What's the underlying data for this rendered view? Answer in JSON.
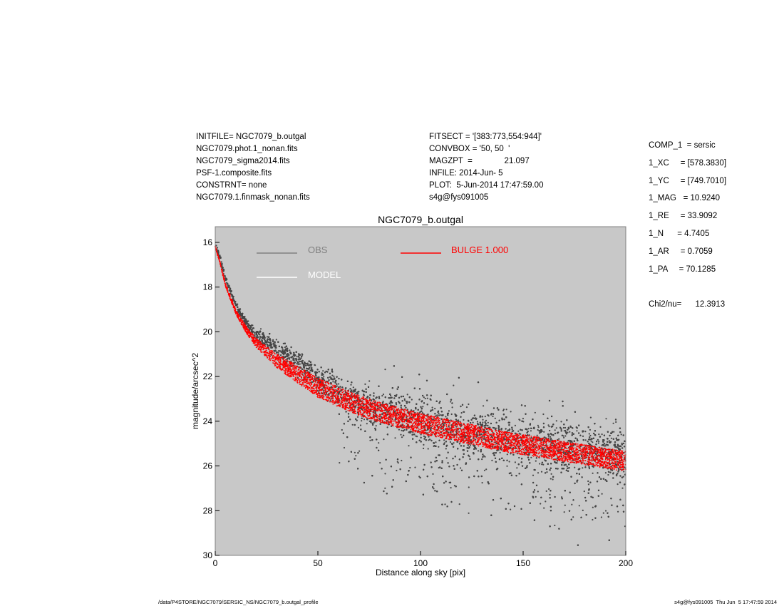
{
  "header": {
    "left": [
      "INITFILE= NGC7079_b.outgal",
      "NGC7079.phot.1_nonan.fits",
      "NGC7079_sigma2014.fits",
      "PSF-1.composite.fits",
      "CONSTRNT= none",
      "NGC7079.1.finmask_nonan.fits"
    ],
    "middle": [
      "FITSECT = '[383:773,554:944]'",
      "CONVBOX = '50, 50  '",
      "MAGZPT  =              21.097",
      "INFILE: 2014-Jun- 5",
      "PLOT:  5-Jun-2014 17:47:59.00",
      "s4g@fys091005"
    ]
  },
  "params": [
    "COMP_1  = sersic",
    "1_XC     = [578.3830]",
    "1_YC     = [749.7010]",
    "1_MAG   = 10.9240",
    "1_RE     = 33.9092",
    "1_N      = 4.7405",
    "1_AR     = 0.7059",
    "1_PA     = 70.1285",
    "",
    "Chi2/nu=      12.3913"
  ],
  "footer": {
    "left": "/data/P4STORE/NGC7079/SERSIC_NS/NGC7079_b.outgal_profile",
    "right": "s4g@fys091005  Thu Jun  5 17:47:59 2014"
  },
  "colors": {
    "plot_bg": "#c8c8c8",
    "obs": "#464646",
    "model": "#ffffff",
    "bulge": "#ff0000"
  },
  "chart_data": {
    "type": "scatter",
    "title": "NGC7079_b.outgal",
    "xlabel": "Distance along sky [pix]",
    "ylabel": "magnitude/arcsec^2",
    "xlim": [
      0,
      200
    ],
    "ylim": [
      30,
      15.3
    ],
    "y_inverted": true,
    "xticks": [
      0,
      50,
      100,
      150,
      200
    ],
    "yticks": [
      16,
      18,
      20,
      22,
      24,
      26,
      28,
      30
    ],
    "grid": false,
    "legend": [
      {
        "label": "OBS",
        "color": "#808080",
        "position": "top-left"
      },
      {
        "label": "MODEL",
        "color": "#ffffff",
        "position": "top-left"
      },
      {
        "label": "BULGE  1.000",
        "color": "#ff0000",
        "position": "top-center"
      }
    ],
    "series": [
      {
        "name": "OBS",
        "x": [
          0,
          2,
          5,
          10,
          15,
          20,
          25,
          30,
          35,
          40,
          50,
          60,
          70,
          80,
          100,
          120,
          140,
          160,
          180,
          200
        ],
        "y": [
          16.1,
          16.6,
          17.6,
          18.8,
          19.6,
          20.1,
          20.4,
          20.7,
          21.0,
          21.4,
          22.1,
          22.7,
          23.1,
          23.5,
          24.0,
          24.4,
          24.7,
          25.0,
          25.3,
          25.6
        ]
      },
      {
        "name": "BULGE  1.000",
        "x": [
          0,
          2,
          5,
          10,
          15,
          20,
          25,
          30,
          35,
          40,
          50,
          60,
          70,
          80,
          100,
          120,
          140,
          160,
          180,
          200
        ],
        "y": [
          16.2,
          16.8,
          17.9,
          19.1,
          19.9,
          20.5,
          20.9,
          21.3,
          21.6,
          21.9,
          22.5,
          22.9,
          23.3,
          23.6,
          24.1,
          24.5,
          24.9,
          25.2,
          25.5,
          25.8
        ],
        "band_width": [
          0.1,
          0.1,
          0.15,
          0.2,
          0.3,
          0.4,
          0.5,
          0.6,
          0.7,
          0.75,
          0.85,
          0.9,
          0.9,
          0.9,
          0.9,
          0.9,
          0.9,
          0.9,
          0.9,
          0.9
        ]
      }
    ]
  }
}
